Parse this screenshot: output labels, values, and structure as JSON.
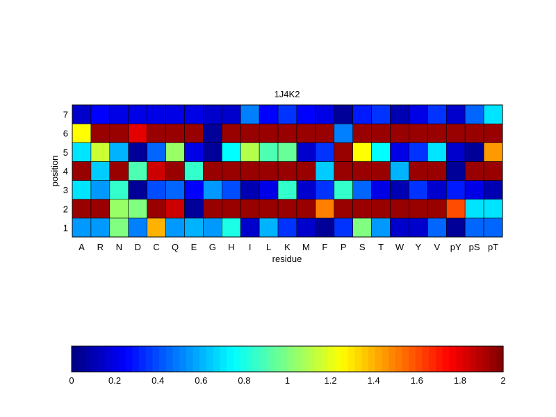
{
  "chart_data": {
    "type": "heatmap",
    "title": "1J4K2",
    "xlabel": "residue",
    "ylabel": "position",
    "x": [
      "A",
      "R",
      "N",
      "D",
      "C",
      "Q",
      "E",
      "G",
      "H",
      "I",
      "L",
      "K",
      "M",
      "F",
      "P",
      "S",
      "T",
      "W",
      "Y",
      "V",
      "pY",
      "pS",
      "pT"
    ],
    "y": [
      "1",
      "2",
      "3",
      "4",
      "5",
      "6",
      "7"
    ],
    "values": [
      [
        0.55,
        0.55,
        1.0,
        0.5,
        1.4,
        0.55,
        0.6,
        0.55,
        0.8,
        0.15,
        0.6,
        0.35,
        0.15,
        0.05,
        0.35,
        1.0,
        0.55,
        0.15,
        0.15,
        0.45,
        0.05,
        0.45,
        0.45
      ],
      [
        1.95,
        1.95,
        1.05,
        1.0,
        1.95,
        1.85,
        0.05,
        1.95,
        1.95,
        1.95,
        1.95,
        1.95,
        1.95,
        1.5,
        1.95,
        1.95,
        1.95,
        1.95,
        1.95,
        1.95,
        1.6,
        0.7,
        0.7
      ],
      [
        0.7,
        0.55,
        0.85,
        0.05,
        0.4,
        0.45,
        0.25,
        0.55,
        0.4,
        0.1,
        0.2,
        0.85,
        0.15,
        0.35,
        0.85,
        0.45,
        0.2,
        0.1,
        0.35,
        0.15,
        0.3,
        0.2,
        0.1
      ],
      [
        1.95,
        0.65,
        1.95,
        0.9,
        1.85,
        1.95,
        0.85,
        1.95,
        1.95,
        1.95,
        1.95,
        1.95,
        1.95,
        0.65,
        1.95,
        1.95,
        1.95,
        0.6,
        1.95,
        1.95,
        0.05,
        1.95,
        1.95
      ],
      [
        0.7,
        1.15,
        0.6,
        0.05,
        0.45,
        1.05,
        0.2,
        0.05,
        0.75,
        1.1,
        0.9,
        0.95,
        0.15,
        0.35,
        1.95,
        1.25,
        0.75,
        0.2,
        0.35,
        0.7,
        0.15,
        0.05,
        1.45
      ],
      [
        1.25,
        1.95,
        1.95,
        1.8,
        1.95,
        1.95,
        1.95,
        0.05,
        1.95,
        1.95,
        1.95,
        1.95,
        1.95,
        1.95,
        0.5,
        1.95,
        1.95,
        1.95,
        1.95,
        1.95,
        1.95,
        1.95,
        1.95
      ],
      [
        0.15,
        0.25,
        0.2,
        0.2,
        0.2,
        0.2,
        0.2,
        0.15,
        0.15,
        0.5,
        0.25,
        0.35,
        0.25,
        0.2,
        0.05,
        0.3,
        0.35,
        0.1,
        0.2,
        0.35,
        0.15,
        0.45,
        0.7
      ]
    ],
    "zlim": [
      0,
      2
    ],
    "colormap": "jet",
    "colorbar": {
      "orientation": "horizontal",
      "ticks": [
        "0",
        "0.2",
        "0.4",
        "0.6",
        "0.8",
        "1",
        "1.2",
        "1.4",
        "1.6",
        "1.8",
        "2"
      ]
    },
    "grid": false
  }
}
